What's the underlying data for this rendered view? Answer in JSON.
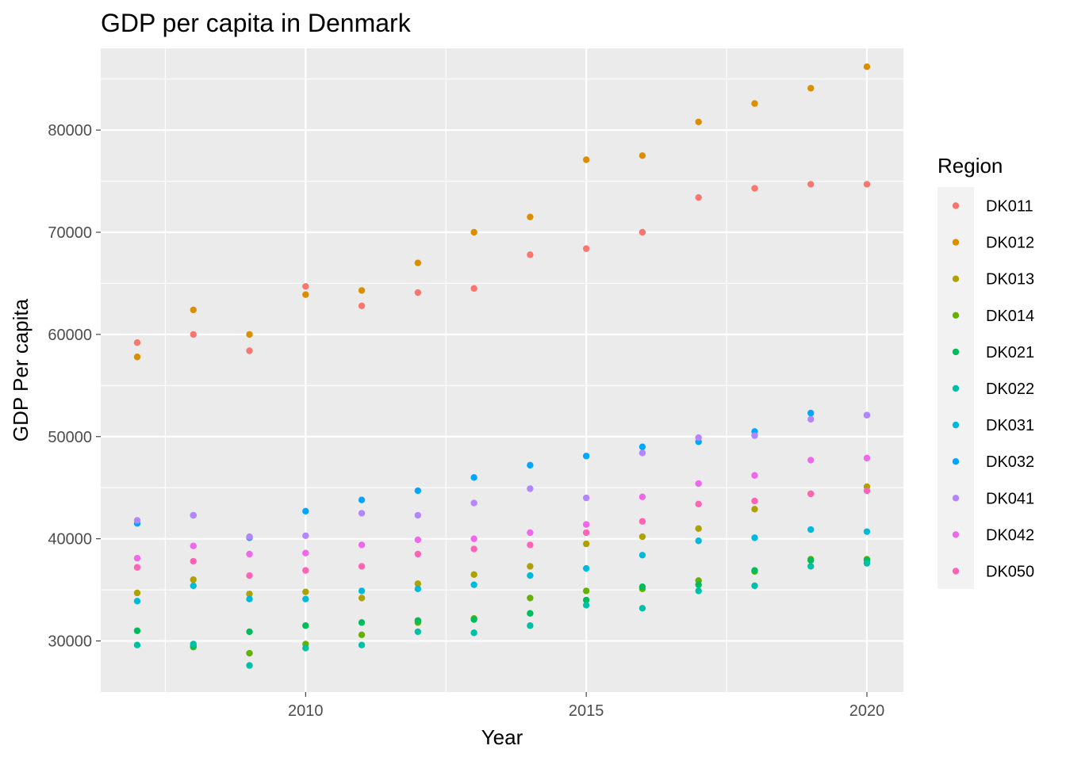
{
  "chart_data": {
    "type": "scatter",
    "title": "GDP per capita in Denmark",
    "xlabel": "Year",
    "ylabel": "GDP Per capita",
    "xlim": [
      2006.35,
      2020.65
    ],
    "ylim": [
      25000,
      88000
    ],
    "x_ticks": [
      2010,
      2015,
      2020
    ],
    "y_ticks": [
      30000,
      40000,
      50000,
      60000,
      70000,
      80000
    ],
    "grid": true,
    "legend": {
      "title": "Region",
      "position": "right"
    },
    "x": [
      2007,
      2008,
      2009,
      2010,
      2011,
      2012,
      2013,
      2014,
      2015,
      2016,
      2017,
      2018,
      2019,
      2020
    ],
    "series": [
      {
        "name": "DK011",
        "color": "#F8766D",
        "values": [
          59200,
          60000,
          58400,
          64700,
          62800,
          64100,
          64500,
          67800,
          68400,
          70000,
          73400,
          74300,
          74700,
          74700
        ]
      },
      {
        "name": "DK012",
        "color": "#DB8E00",
        "values": [
          57800,
          62400,
          60000,
          63900,
          64300,
          67000,
          70000,
          71500,
          77100,
          77500,
          80800,
          82600,
          84100,
          86200
        ]
      },
      {
        "name": "DK013",
        "color": "#AEA200",
        "values": [
          34700,
          36000,
          34600,
          34800,
          34200,
          35600,
          36500,
          37300,
          39500,
          40200,
          41000,
          42900,
          44400,
          45100
        ]
      },
      {
        "name": "DK014",
        "color": "#64B200",
        "values": [
          31000,
          29400,
          28800,
          29700,
          30600,
          31800,
          32200,
          34200,
          34900,
          35100,
          35900,
          36800,
          38000,
          38000
        ]
      },
      {
        "name": "DK021",
        "color": "#00BD5C",
        "values": [
          31000,
          29500,
          30900,
          31500,
          31800,
          32000,
          32100,
          32700,
          34000,
          35300,
          35500,
          36900,
          37900,
          37900
        ]
      },
      {
        "name": "DK022",
        "color": "#00C1A7",
        "values": [
          29600,
          29700,
          27600,
          29300,
          29600,
          30900,
          30800,
          31500,
          33500,
          33200,
          34900,
          35400,
          37300,
          37600
        ]
      },
      {
        "name": "DK031",
        "color": "#00BADE",
        "values": [
          33900,
          35400,
          34100,
          34100,
          34900,
          35100,
          35500,
          36400,
          37100,
          38400,
          39800,
          40100,
          40900,
          40700
        ]
      },
      {
        "name": "DK032",
        "color": "#00A6FF",
        "values": [
          41500,
          42300,
          40100,
          42700,
          43800,
          44700,
          46000,
          47200,
          48100,
          49000,
          49500,
          50500,
          52300,
          52100
        ]
      },
      {
        "name": "DK041",
        "color": "#B385FF",
        "values": [
          41800,
          42300,
          40200,
          40300,
          42500,
          42300,
          43500,
          44900,
          44000,
          48400,
          49900,
          50100,
          51700,
          52100
        ]
      },
      {
        "name": "DK042",
        "color": "#EF67EB",
        "values": [
          38100,
          39300,
          38500,
          38600,
          39400,
          39900,
          40000,
          40600,
          41400,
          44100,
          45400,
          46200,
          47700,
          47900
        ]
      },
      {
        "name": "DK050",
        "color": "#FF63B6",
        "values": [
          37200,
          37800,
          36400,
          36900,
          37300,
          38500,
          39000,
          39400,
          40600,
          41700,
          43400,
          43700,
          44400,
          44700
        ]
      }
    ]
  }
}
